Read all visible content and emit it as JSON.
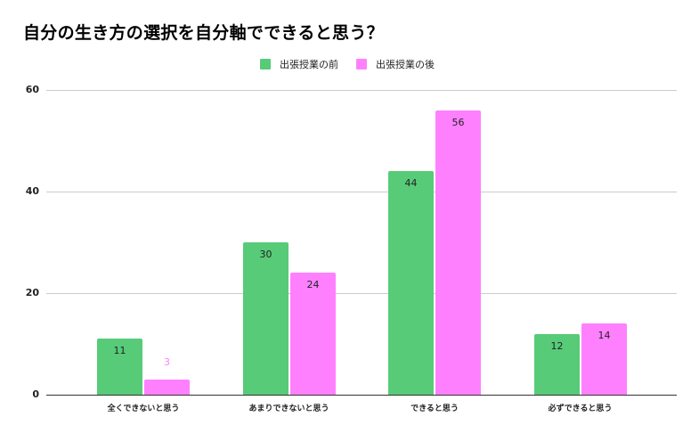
{
  "title": "自分の生き方の選択を自分軸でできると思う？",
  "legend": [
    {
      "label": "出張授業の前",
      "color": "#57cb78"
    },
    {
      "label": "出張授業の後",
      "color": "#ff80ff"
    }
  ],
  "y_ticks": [
    "0",
    "20",
    "40",
    "60"
  ],
  "chart_data": {
    "type": "bar",
    "title": "自分の生き方の選択を自分軸でできると思う？",
    "xlabel": "",
    "ylabel": "",
    "ylim": [
      0,
      60
    ],
    "y_ticks": [
      0,
      20,
      40,
      60
    ],
    "grid": true,
    "legend_position": "top",
    "categories": [
      "全くできないと思う",
      "あまりできないと思う",
      "できると思う",
      "必ずできると思う"
    ],
    "series": [
      {
        "name": "出張授業の前",
        "color": "#57cb78",
        "values": [
          11,
          30,
          44,
          12
        ]
      },
      {
        "name": "出張授業の後",
        "color": "#ff80ff",
        "values": [
          3,
          24,
          56,
          14
        ]
      }
    ]
  }
}
